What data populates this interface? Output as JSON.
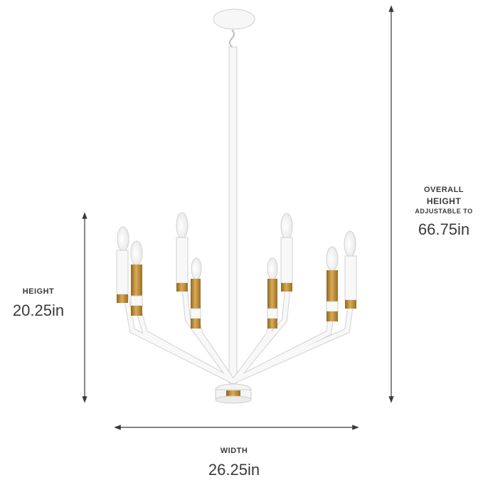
{
  "dimensions": {
    "height": {
      "label": "HEIGHT",
      "value": "20.25in"
    },
    "overall": {
      "line1": "OVERALL",
      "line2": "HEIGHT",
      "line3": "ADJUSTABLE TO",
      "value": "66.75in"
    },
    "width": {
      "label": "WIDTH",
      "value": "26.25in"
    }
  },
  "colors": {
    "fixture_body": "#f7f7f7",
    "fixture_outline": "#c9c9c9",
    "brass": "#b8893a",
    "dimension_line": "#3a3a3a"
  }
}
